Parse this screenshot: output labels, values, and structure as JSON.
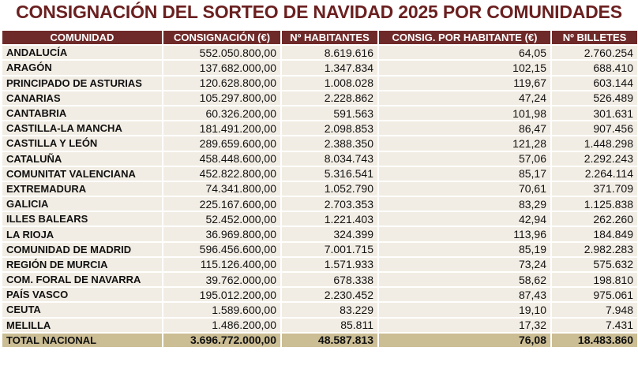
{
  "title": "CONSIGNACIÓN DEL SORTEO DE NAVIDAD 2025 POR COMUNIDADES",
  "table": {
    "header": [
      "COMUNIDAD",
      "CONSIGNACIÓN (€)",
      "Nº HABITANTES",
      "CONSIG. POR HABITANTE (€)",
      "Nº BILLETES"
    ],
    "rows": [
      [
        "ANDALUCÍA",
        "552.050.800,00",
        "8.619.616",
        "64,05",
        "2.760.254"
      ],
      [
        "ARAGÓN",
        "137.682.000,00",
        "1.347.834",
        "102,15",
        "688.410"
      ],
      [
        "PRINCIPADO DE ASTURIAS",
        "120.628.800,00",
        "1.008.028",
        "119,67",
        "603.144"
      ],
      [
        "CANARIAS",
        "105.297.800,00",
        "2.228.862",
        "47,24",
        "526.489"
      ],
      [
        "CANTABRIA",
        "60.326.200,00",
        "591.563",
        "101,98",
        "301.631"
      ],
      [
        "CASTILLA-LA MANCHA",
        "181.491.200,00",
        "2.098.853",
        "86,47",
        "907.456"
      ],
      [
        "CASTILLA Y LEÓN",
        "289.659.600,00",
        "2.388.350",
        "121,28",
        "1.448.298"
      ],
      [
        "CATALUÑA",
        "458.448.600,00",
        "8.034.743",
        "57,06",
        "2.292.243"
      ],
      [
        "COMUNITAT VALENCIANA",
        "452.822.800,00",
        "5.316.541",
        "85,17",
        "2.264.114"
      ],
      [
        "EXTREMADURA",
        "74.341.800,00",
        "1.052.790",
        "70,61",
        "371.709"
      ],
      [
        "GALICIA",
        "225.167.600,00",
        "2.703.353",
        "83,29",
        "1.125.838"
      ],
      [
        "ILLES BALEARS",
        "52.452.000,00",
        "1.221.403",
        "42,94",
        "262.260"
      ],
      [
        "LA RIOJA",
        "36.969.800,00",
        "324.399",
        "113,96",
        "184.849"
      ],
      [
        "COMUNIDAD DE MADRID",
        "596.456.600,00",
        "7.001.715",
        "85,19",
        "2.982.283"
      ],
      [
        "REGIÓN DE MURCIA",
        "115.126.400,00",
        "1.571.933",
        "73,24",
        "575.632"
      ],
      [
        "COM. FORAL DE NAVARRA",
        "39.762.000,00",
        "678.338",
        "58,62",
        "198.810"
      ],
      [
        "PAÍS VASCO",
        "195.012.200,00",
        "2.230.452",
        "87,43",
        "975.061"
      ],
      [
        "CEUTA",
        "1.589.600,00",
        "83.229",
        "19,10",
        "7.948"
      ],
      [
        "MELILLA",
        "1.486.200,00",
        "85.811",
        "17,32",
        "7.431"
      ]
    ],
    "total": [
      "TOTAL NACIONAL",
      "3.696.772.000,00",
      "48.587.813",
      "76,08",
      "18.483.860"
    ]
  }
}
